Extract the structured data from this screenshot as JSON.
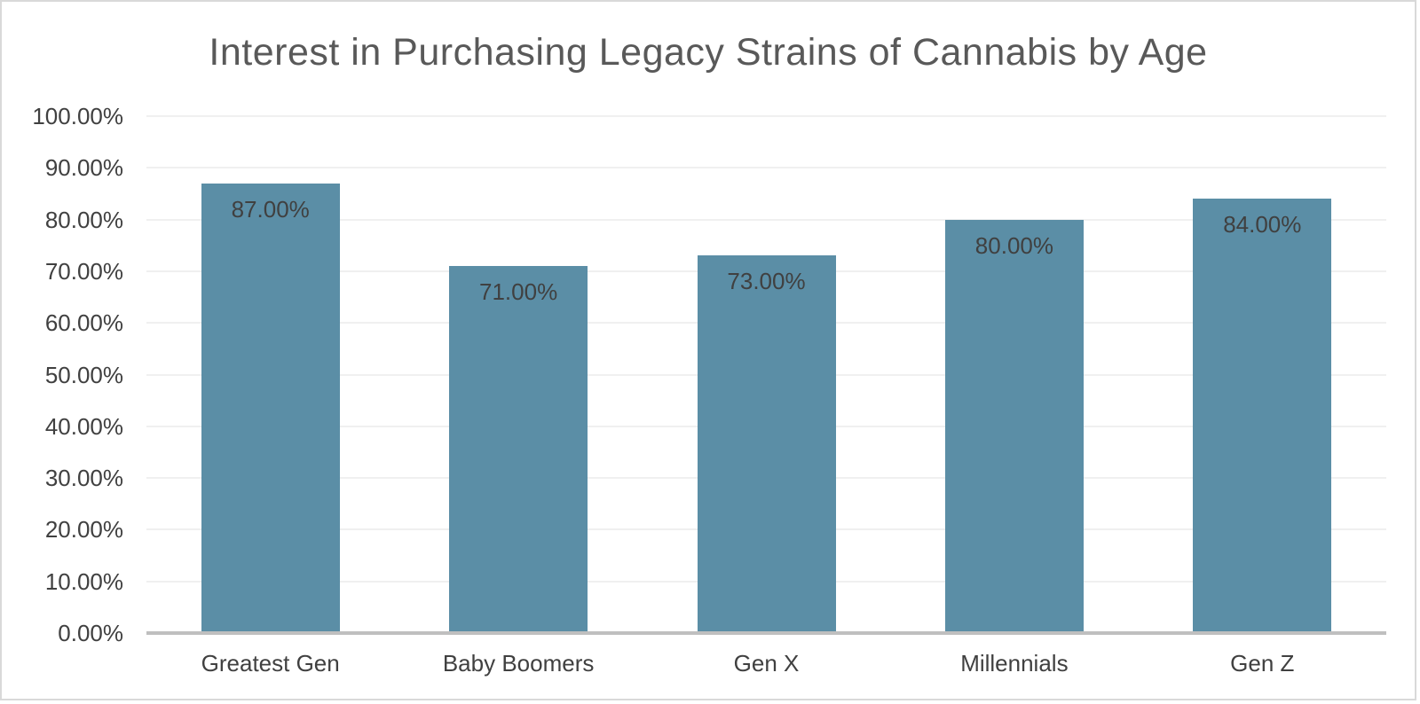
{
  "chart_data": {
    "type": "bar",
    "title": "Interest in Purchasing Legacy Strains of Cannabis by Age",
    "categories": [
      "Greatest Gen",
      "Baby Boomers",
      "Gen X",
      "Millennials",
      "Gen Z"
    ],
    "values": [
      87,
      71,
      73,
      80,
      84
    ],
    "data_labels": [
      "87.00%",
      "71.00%",
      "73.00%",
      "80.00%",
      "84.00%"
    ],
    "y_tick_values": [
      0,
      10,
      20,
      30,
      40,
      50,
      60,
      70,
      80,
      90,
      100
    ],
    "y_tick_labels": [
      "0.00%",
      "10.00%",
      "20.00%",
      "30.00%",
      "40.00%",
      "50.00%",
      "60.00%",
      "70.00%",
      "80.00%",
      "90.00%",
      "100.00%"
    ],
    "ylim": [
      0,
      100
    ],
    "xlabel": "",
    "ylabel": "",
    "grid": true,
    "legend": "none",
    "data_label_position": "inside-end",
    "colors": {
      "bar_fill": "#5b8ea6",
      "title_text": "#595959",
      "axis_text": "#404040",
      "data_label_text": "#404040",
      "gridline": "#f0f0f0",
      "axis_line": "#bfbfbf",
      "background": "#ffffff",
      "border": "#d9d9d9"
    }
  }
}
